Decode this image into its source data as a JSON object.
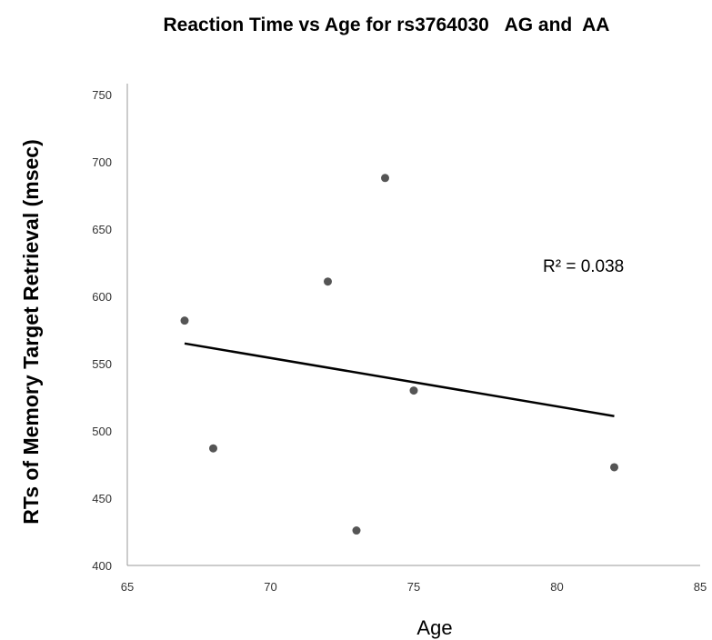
{
  "chart_data": {
    "type": "scatter",
    "title": "Reaction Time vs Age for rs3764030   AG and  AA",
    "xlabel": "Age",
    "ylabel": "RTs of Memory Target Retrieval (msec)",
    "xlim": [
      65,
      85
    ],
    "ylim": [
      400,
      750
    ],
    "xticks": [
      65,
      70,
      75,
      80,
      85
    ],
    "yticks": [
      400,
      450,
      500,
      550,
      600,
      650,
      700,
      750
    ],
    "grid": false,
    "legend": "none",
    "colors": {
      "points": "#555555",
      "trendline": "#000000",
      "axis": "#999999"
    },
    "points": [
      {
        "x": 67,
        "y": 582
      },
      {
        "x": 68,
        "y": 487
      },
      {
        "x": 72,
        "y": 611
      },
      {
        "x": 73,
        "y": 426
      },
      {
        "x": 74,
        "y": 688
      },
      {
        "x": 75,
        "y": 530
      },
      {
        "x": 82,
        "y": 473
      }
    ],
    "trendline": {
      "x": [
        67,
        82
      ],
      "y": [
        565,
        511
      ]
    },
    "annotation": "R² = 0.038"
  }
}
